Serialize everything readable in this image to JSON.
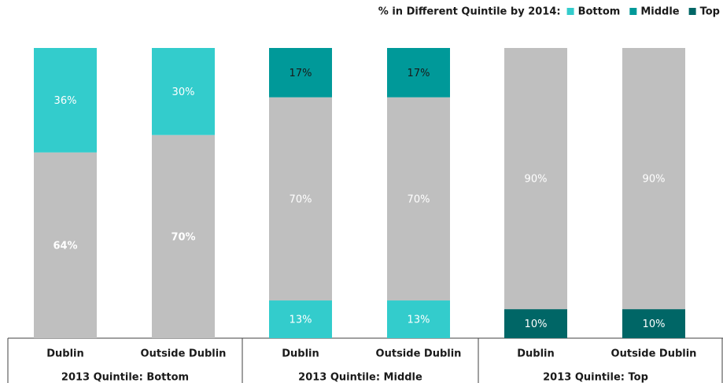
{
  "legend": {
    "title": "% in Different Quintile by 2014:",
    "items": [
      {
        "name": "Bottom",
        "color": "#33cccc"
      },
      {
        "name": "Middle",
        "color": "#009999"
      },
      {
        "name": "Top",
        "color": "#006666"
      }
    ]
  },
  "chart_data": [
    {
      "type": "bar",
      "stacked": true,
      "title": "2013 Quintile: Bottom",
      "categories": [
        "Dublin",
        "Outside Dublin"
      ],
      "ylim": [
        0,
        100
      ],
      "series": [
        {
          "color": "#bfbfbf",
          "label_color": "#ffffff",
          "label_bold": true,
          "values": [
            64,
            70
          ],
          "value_labels": [
            "64%",
            "70%"
          ]
        },
        {
          "color": "#33cccc",
          "label_color": "#ffffff",
          "values": [
            36,
            30
          ],
          "value_labels": [
            "36%",
            "30%"
          ]
        }
      ]
    },
    {
      "type": "bar",
      "stacked": true,
      "title": "2013 Quintile: Middle",
      "categories": [
        "Dublin",
        "Outside Dublin"
      ],
      "ylim": [
        0,
        100
      ],
      "series": [
        {
          "color": "#33cccc",
          "label_color": "#ffffff",
          "values": [
            13,
            13
          ],
          "value_labels": [
            "13%",
            "13%"
          ]
        },
        {
          "color": "#bfbfbf",
          "label_color": "#ffffff",
          "values": [
            70,
            70
          ],
          "value_labels": [
            "70%",
            "70%"
          ]
        },
        {
          "color": "#009999",
          "label_color": "#1a1a1a",
          "values": [
            17,
            17
          ],
          "value_labels": [
            "17%",
            "17%"
          ]
        }
      ]
    },
    {
      "type": "bar",
      "stacked": true,
      "title": "2013 Quintile: Top",
      "categories": [
        "Dublin",
        "Outside Dublin"
      ],
      "ylim": [
        0,
        100
      ],
      "series": [
        {
          "color": "#006666",
          "label_color": "#ffffff",
          "values": [
            10,
            10
          ],
          "value_labels": [
            "10%",
            "10%"
          ]
        },
        {
          "color": "#bfbfbf",
          "label_color": "#ffffff",
          "values": [
            90,
            90
          ],
          "value_labels": [
            "90%",
            "90%"
          ]
        }
      ]
    }
  ]
}
